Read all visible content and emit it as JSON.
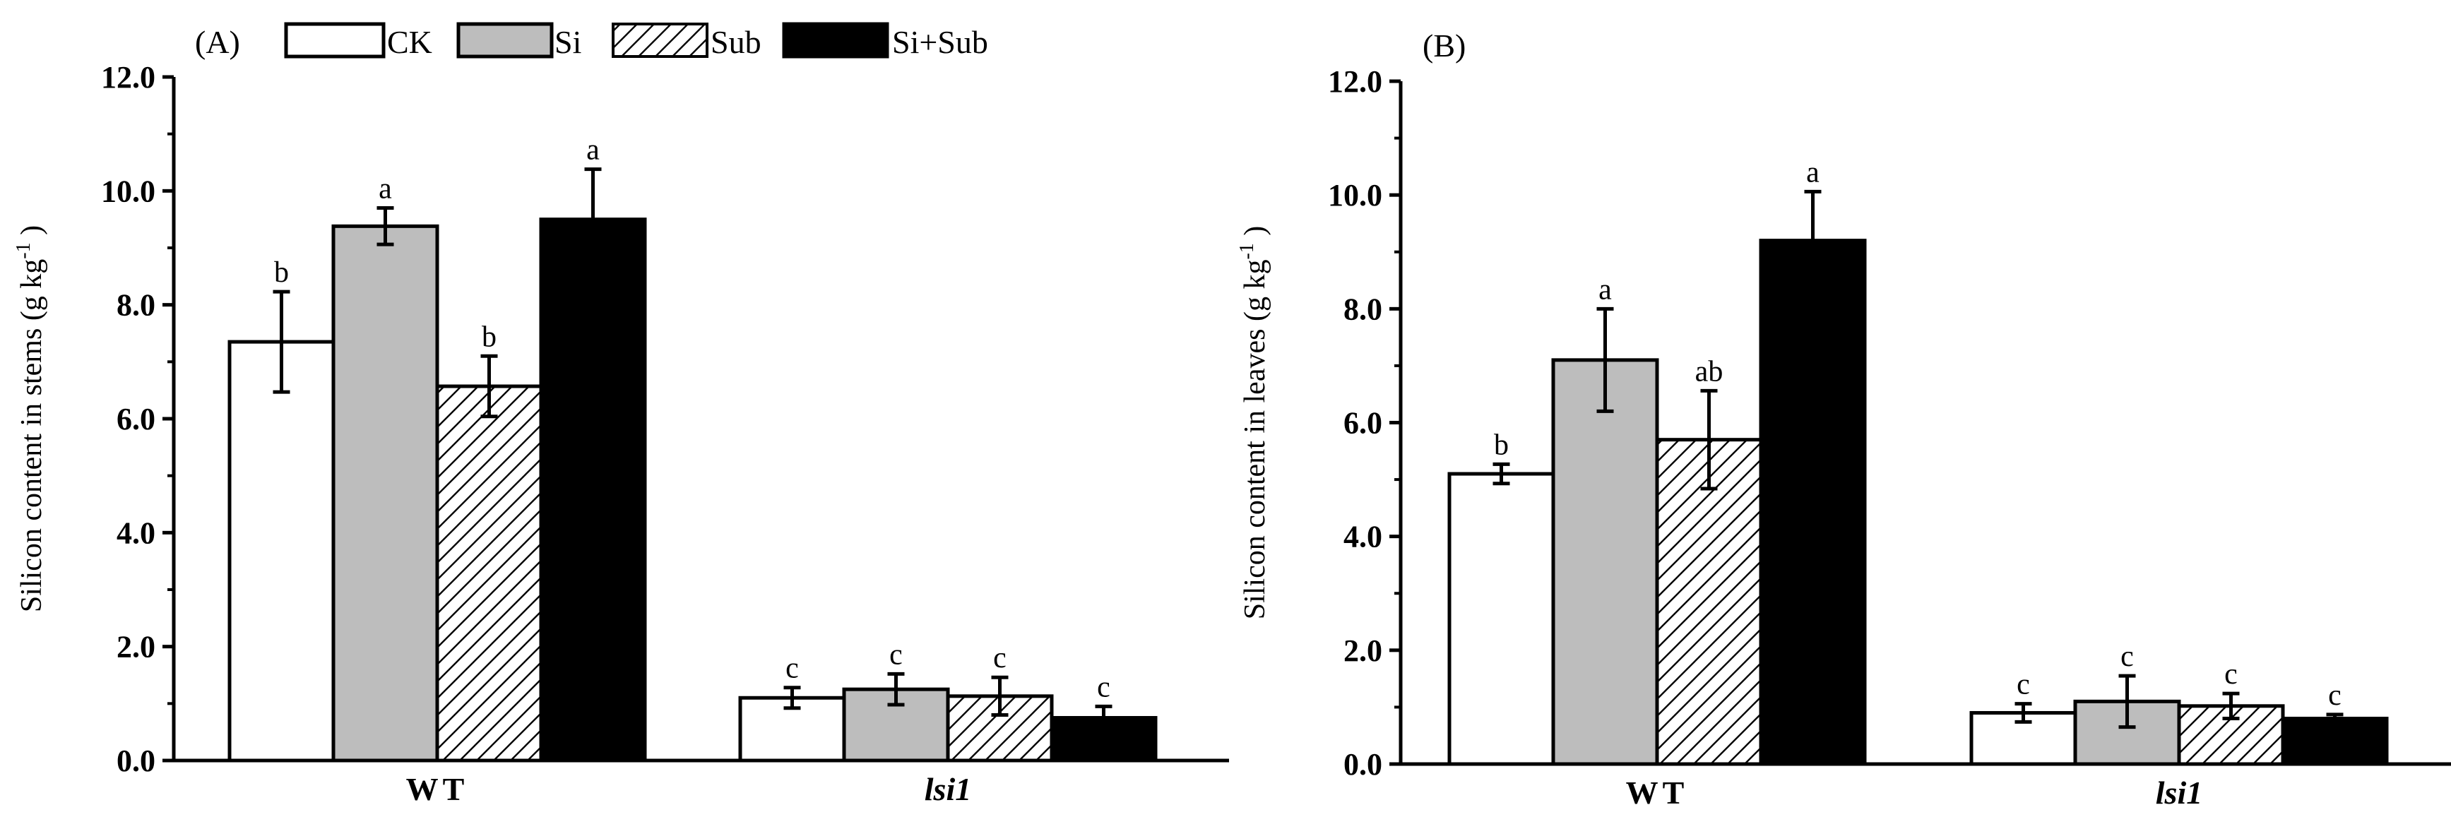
{
  "legend": [
    {
      "name": "CK",
      "style": "white"
    },
    {
      "name": "Si",
      "style": "gray"
    },
    {
      "name": "Sub",
      "style": "hatch"
    },
    {
      "name": "Si+Sub",
      "style": "black"
    }
  ],
  "colors": {
    "gray": "#bdbdbd",
    "black": "#000000",
    "white": "#ffffff",
    "axis": "#000000"
  },
  "chart_data": [
    {
      "type": "bar",
      "panel_label": "(A)",
      "ylabel": "Silicon content in stems (g kg",
      "ylabel_sup": "-1",
      "ylabel_close": ")",
      "ylim": [
        0,
        12
      ],
      "yticks": [
        "0.0",
        "2.0",
        "4.0",
        "6.0",
        "8.0",
        "10.0",
        "12.0"
      ],
      "categories": [
        "WT",
        "lsi1"
      ],
      "category_italic": [
        false,
        true
      ],
      "series": [
        {
          "name": "CK",
          "values": [
            7.35,
            1.1
          ],
          "errors": [
            0.88,
            0.18
          ],
          "labels": [
            "b",
            "c"
          ]
        },
        {
          "name": "Si",
          "values": [
            9.38,
            1.25
          ],
          "errors": [
            0.32,
            0.27
          ],
          "labels": [
            "a",
            "c"
          ]
        },
        {
          "name": "Sub",
          "values": [
            6.57,
            1.13
          ],
          "errors": [
            0.53,
            0.33
          ],
          "labels": [
            "b",
            "c"
          ]
        },
        {
          "name": "Si+Sub",
          "values": [
            9.5,
            0.75
          ],
          "errors": [
            0.88,
            0.2
          ],
          "labels": [
            "a",
            "c"
          ]
        }
      ]
    },
    {
      "type": "bar",
      "panel_label": "(B)",
      "ylabel": "Silicon content in leaves (g kg",
      "ylabel_sup": "-1",
      "ylabel_close": ")",
      "ylim": [
        0,
        12
      ],
      "yticks": [
        "0.0",
        "2.0",
        "4.0",
        "6.0",
        "8.0",
        "10.0",
        "12.0"
      ],
      "categories": [
        "WT",
        "lsi1"
      ],
      "category_italic": [
        false,
        true
      ],
      "series": [
        {
          "name": "CK",
          "values": [
            5.1,
            0.9
          ],
          "errors": [
            0.17,
            0.16
          ],
          "labels": [
            "b",
            "c"
          ]
        },
        {
          "name": "Si",
          "values": [
            7.1,
            1.1
          ],
          "errors": [
            0.9,
            0.45
          ],
          "labels": [
            "a",
            "c"
          ]
        },
        {
          "name": "Sub",
          "values": [
            5.7,
            1.02
          ],
          "errors": [
            0.86,
            0.22
          ],
          "labels": [
            "ab",
            "c"
          ]
        },
        {
          "name": "Si+Sub",
          "values": [
            9.2,
            0.8
          ],
          "errors": [
            0.86,
            0.07
          ],
          "labels": [
            "a",
            "c"
          ]
        }
      ]
    }
  ]
}
